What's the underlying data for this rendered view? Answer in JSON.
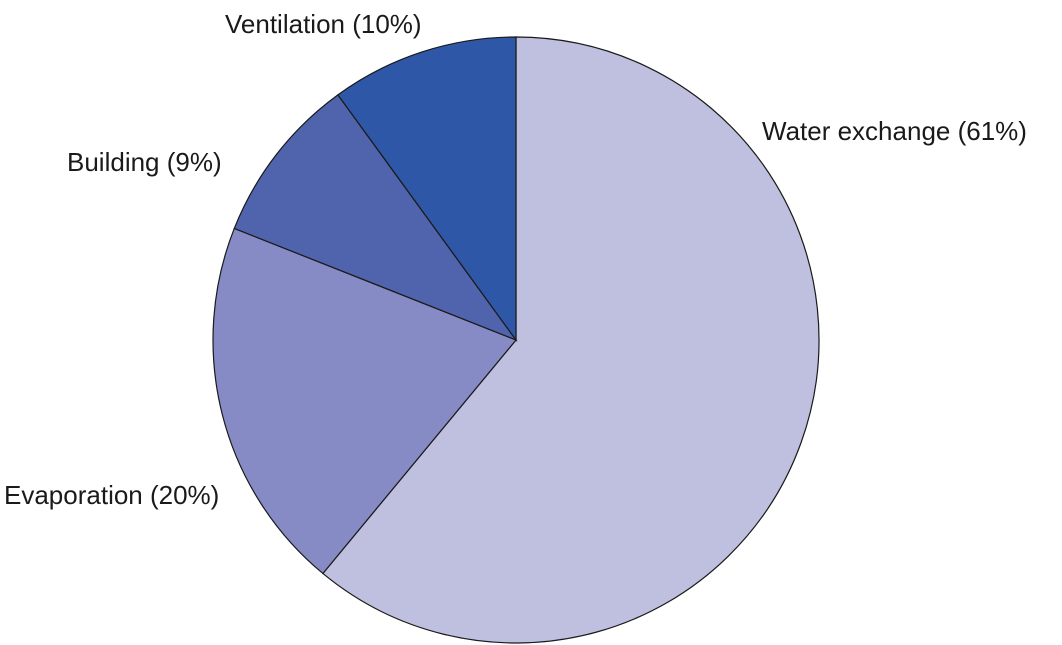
{
  "chart_data": {
    "type": "pie",
    "start_angle_deg": 0,
    "direction": "clockwise",
    "slices": [
      {
        "label": "Water exchange (61%)",
        "name": "Water exchange",
        "value": 61,
        "color": "#bfbfdf"
      },
      {
        "label": "Evaporation (20%)",
        "name": "Evaporation",
        "value": 20,
        "color": "#878bc5"
      },
      {
        "label": "Building (9%)",
        "name": "Building",
        "value": 9,
        "color": "#5063ad"
      },
      {
        "label": "Ventilation (10%)",
        "name": "Ventilation",
        "value": 10,
        "color": "#2f57a7"
      }
    ]
  }
}
